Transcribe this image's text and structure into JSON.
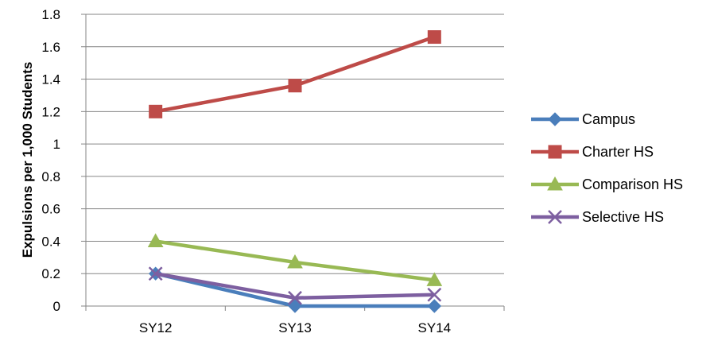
{
  "chart_data": {
    "type": "line",
    "title": "",
    "xlabel": "",
    "ylabel": "Expulsions per 1,000 Students",
    "categories": [
      "SY12",
      "SY13",
      "SY14"
    ],
    "ylim": [
      0,
      1.8
    ],
    "yticks": [
      "0",
      "0.2",
      "0.4",
      "0.6",
      "0.8",
      "1",
      "1.2",
      "1.4",
      "1.6",
      "1.8"
    ],
    "grid": true,
    "legend_position": "right",
    "series": [
      {
        "name": "Campus",
        "values": [
          0.2,
          0.0,
          0.0
        ],
        "color": "#4a7ebb",
        "marker": "diamond"
      },
      {
        "name": "Charter HS",
        "values": [
          1.2,
          1.36,
          1.66
        ],
        "color": "#be4b48",
        "marker": "square"
      },
      {
        "name": "Comparison HS",
        "values": [
          0.4,
          0.27,
          0.16
        ],
        "color": "#98b954",
        "marker": "triangle"
      },
      {
        "name": "Selective HS",
        "values": [
          0.2,
          0.05,
          0.07
        ],
        "color": "#7d5fa0",
        "marker": "x"
      }
    ]
  }
}
